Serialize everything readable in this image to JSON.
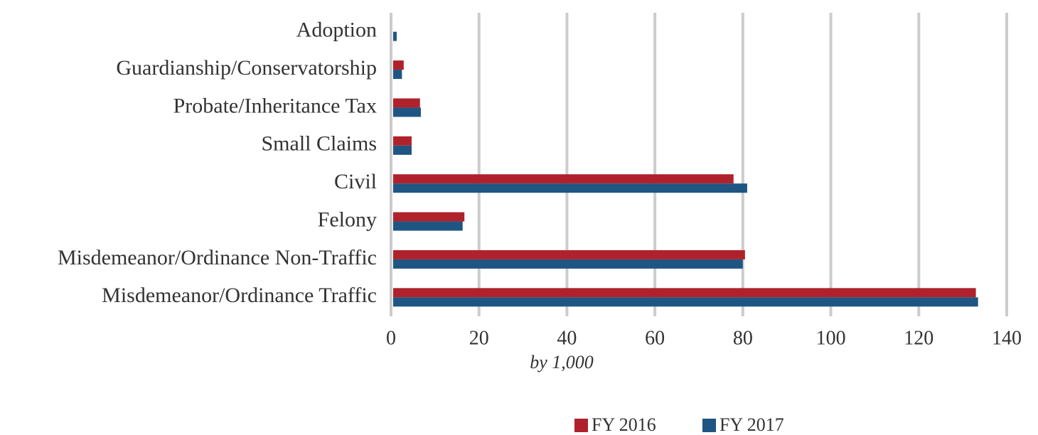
{
  "chart_data": {
    "type": "hbar",
    "categories": [
      "Adoption",
      "Guardianship/Conservatorship",
      "Probate/Inheritance Tax",
      "Small Claims",
      "Civil",
      "Felony",
      "Misdemeanor/Ordinance Non-Traffic",
      "Misdemeanor/Ordinance Traffic"
    ],
    "series": [
      {
        "name": "FY 2016",
        "color": "#b0222b",
        "values": [
          0,
          2.4,
          6.1,
          4.2,
          77.4,
          16.2,
          80.0,
          132.5
        ]
      },
      {
        "name": "FY 2017",
        "color": "#1f5582",
        "values": [
          0.8,
          2.0,
          6.3,
          4.2,
          80.5,
          15.8,
          79.5,
          133.0
        ]
      }
    ],
    "xlabel": "by 1,000",
    "xlim": [
      0,
      140
    ],
    "xticks": [
      0,
      20,
      40,
      60,
      80,
      100,
      120,
      140
    ],
    "grid": true,
    "legend": "bottom"
  }
}
